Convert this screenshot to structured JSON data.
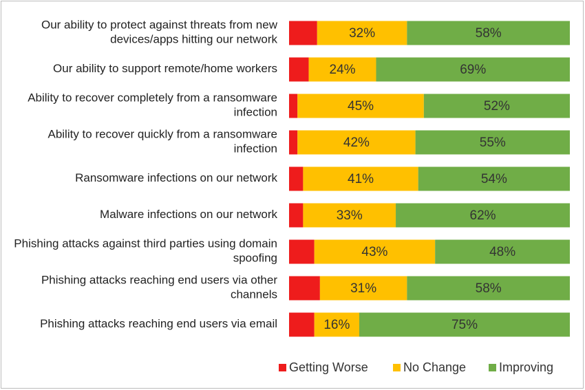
{
  "chart_data": {
    "type": "stacked-bar-horizontal",
    "categories": [
      "Our ability to protect against threats from new devices/apps hitting our network",
      "Our ability to support remote/home workers",
      "Ability to recover completely from a ransomware infection",
      "Ability to recover quickly from a ransomware infection",
      "Ransomware infections on our network",
      "Malware infections on our network",
      "Phishing attacks against third parties using domain spoofing",
      "Phishing attacks reaching end users via other channels",
      "Phishing attacks reaching end users via email"
    ],
    "xlim": [
      0,
      100
    ],
    "legend": "bottom",
    "series": [
      {
        "name": "Getting Worse",
        "color": "#ee1c1c",
        "values": [
          10,
          7,
          3,
          3,
          5,
          5,
          9,
          11,
          9
        ]
      },
      {
        "name": "No Change",
        "color": "#ffc000",
        "values": [
          32,
          24,
          45,
          42,
          41,
          33,
          43,
          31,
          16
        ],
        "value_labels": [
          "32%",
          "24%",
          "45%",
          "42%",
          "41%",
          "33%",
          "43%",
          "31%",
          "16%"
        ]
      },
      {
        "name": "Improving",
        "color": "#70ad47",
        "values": [
          58,
          69,
          52,
          55,
          54,
          62,
          48,
          58,
          75
        ],
        "value_labels": [
          "58%",
          "69%",
          "52%",
          "55%",
          "54%",
          "62%",
          "48%",
          "58%",
          "75%"
        ]
      }
    ]
  }
}
